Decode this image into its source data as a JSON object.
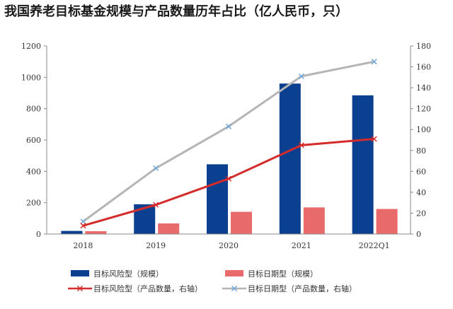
{
  "chart_data": {
    "type": "bar",
    "title": "我国养老目标基金规模与产品数量历年占比（亿人民币，只）",
    "categories": [
      "2018",
      "2019",
      "2020",
      "2021",
      "2022Q1"
    ],
    "y_left": {
      "lim": [
        0,
        1200
      ],
      "ticks": [
        0,
        200,
        400,
        600,
        800,
        1000,
        1200
      ]
    },
    "y_right": {
      "lim": [
        0,
        180
      ],
      "ticks": [
        0,
        20,
        40,
        60,
        80,
        100,
        120,
        140,
        160,
        180
      ]
    },
    "grid": false,
    "legend_position": "bottom",
    "series": [
      {
        "name": "目标风险型（规模）",
        "type": "bar",
        "axis": "left",
        "color": "#0b3f8f",
        "values": [
          20,
          190,
          445,
          960,
          885
        ]
      },
      {
        "name": "目标日期型（规模）",
        "type": "bar",
        "axis": "left",
        "color": "#e86a6a",
        "values": [
          18,
          68,
          142,
          170,
          160
        ]
      },
      {
        "name": "目标风险型（产品数量，右轴）",
        "type": "line",
        "axis": "right",
        "color": "#d42b2b",
        "marker": "x",
        "values": [
          8,
          28,
          53,
          85,
          91
        ]
      },
      {
        "name": "目标日期型（产品数量，右轴）",
        "type": "line",
        "axis": "right",
        "color": "#b5b5b5",
        "marker": "x",
        "values": [
          12,
          63,
          103,
          151,
          165
        ]
      }
    ]
  }
}
